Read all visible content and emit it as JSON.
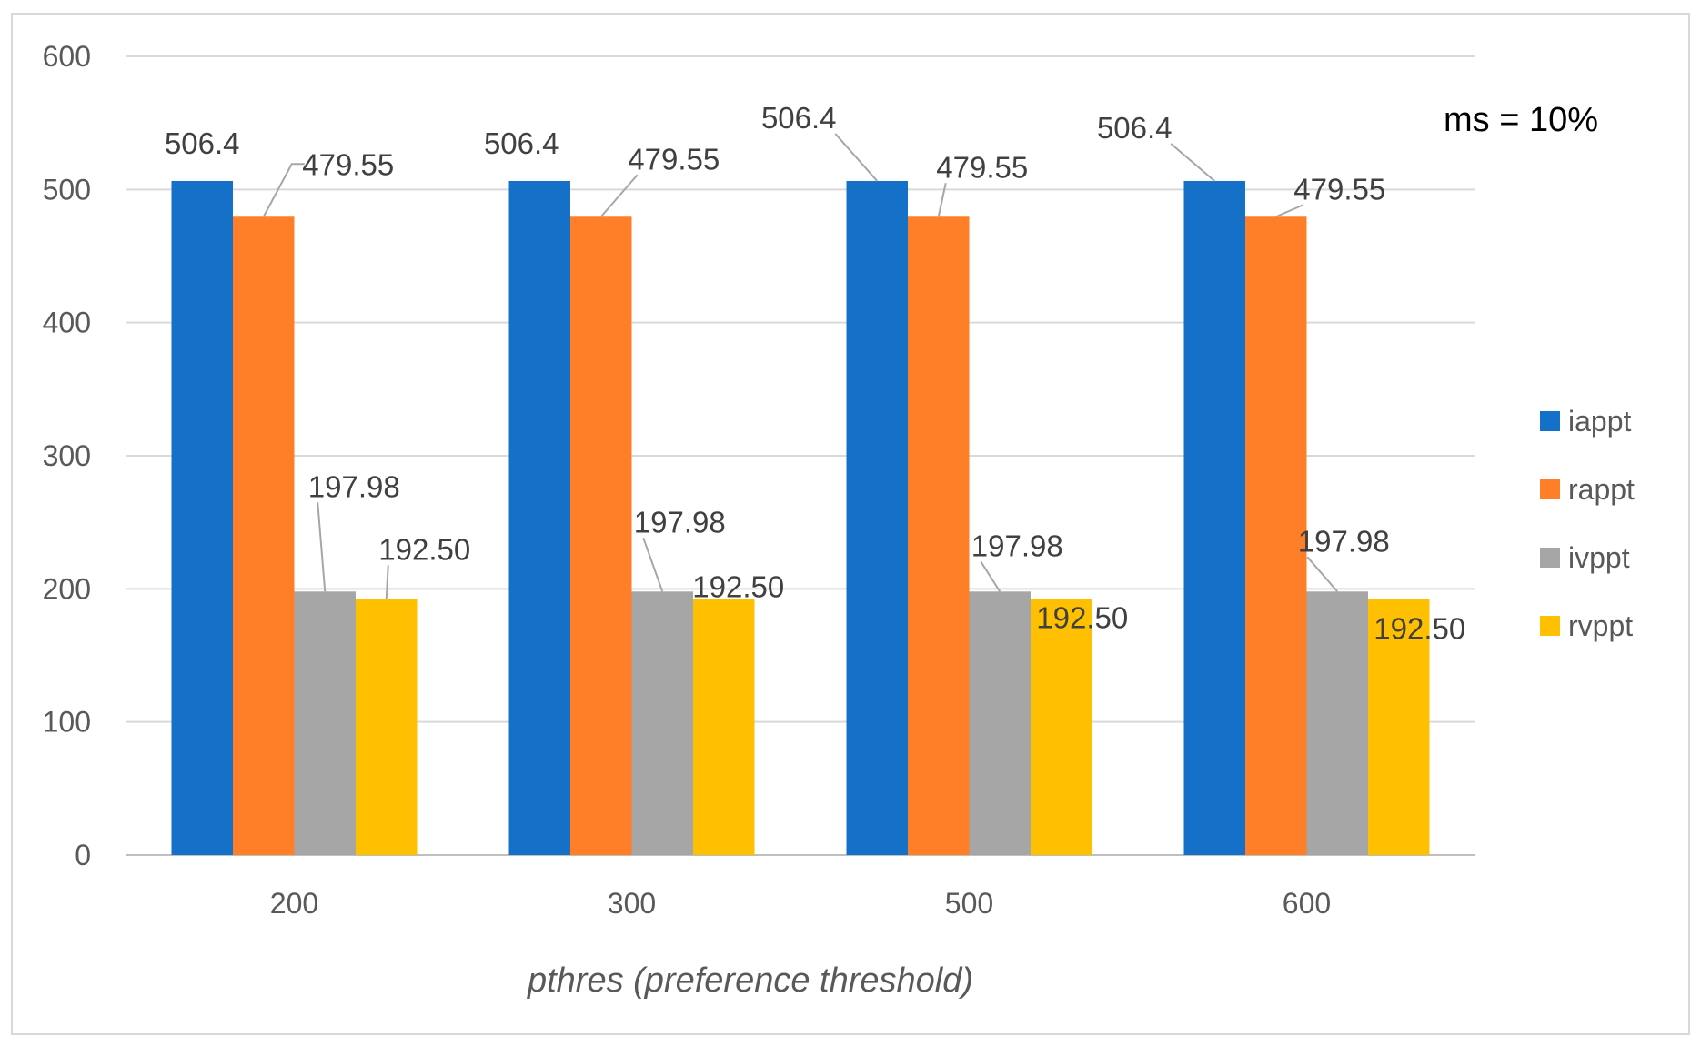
{
  "chart_data": {
    "type": "bar",
    "categories": [
      "200",
      "300",
      "500",
      "600"
    ],
    "series": [
      {
        "name": "iappt",
        "values": [
          506.4,
          506.4,
          506.4,
          506.4
        ],
        "labels": [
          "506.4",
          "506.4",
          "506.4",
          "506.4"
        ],
        "color": "#1570C8"
      },
      {
        "name": "rappt",
        "values": [
          479.55,
          479.55,
          479.55,
          479.55
        ],
        "labels": [
          "479.55",
          "479.55",
          "479.55",
          "479.55"
        ],
        "color": "#FE7F27"
      },
      {
        "name": "ivppt",
        "values": [
          197.98,
          197.98,
          197.98,
          197.98
        ],
        "labels": [
          "197.98",
          "197.98",
          "197.98",
          "197.98"
        ],
        "color": "#A6A6A6"
      },
      {
        "name": "rvppt",
        "values": [
          192.5,
          192.5,
          192.5,
          192.5
        ],
        "labels": [
          "192.50",
          "192.50",
          "192.50",
          "192.50"
        ],
        "color": "#FEC000"
      }
    ],
    "title": "",
    "xlabel": "pthres (preference threshold)",
    "ylabel": "",
    "ylim": [
      0,
      600
    ],
    "yticks": [
      "0",
      "100",
      "200",
      "300",
      "400",
      "500",
      "600"
    ],
    "grid": true,
    "legend_position": "right",
    "annotation": "ms = 10%"
  }
}
